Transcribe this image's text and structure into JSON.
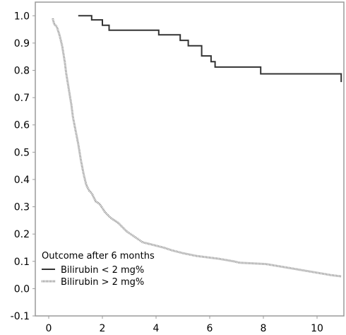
{
  "chart_data": {
    "type": "line",
    "xlim": [
      -0.5,
      11
    ],
    "ylim": [
      -0.1,
      1.05
    ],
    "x_ticks": [
      0,
      2,
      4,
      6,
      8,
      10
    ],
    "y_ticks": [
      -0.1,
      0.0,
      0.1,
      0.2,
      0.3,
      0.4,
      0.5,
      0.6,
      0.7,
      0.8,
      0.9,
      1.0
    ],
    "x_tick_labels": [
      "0",
      "2",
      "4",
      "6",
      "8",
      "10"
    ],
    "y_tick_labels": [
      "-0.1",
      "0.0",
      "0.1",
      "0.2",
      "0.3",
      "0.4",
      "0.5",
      "0.6",
      "0.7",
      "0.8",
      "0.9",
      "1.0"
    ],
    "grid": false,
    "legend": {
      "title": "Outcome after 6 months",
      "placement": "bottom-left",
      "entries": [
        "Bilirubin < 2 mg%",
        "Bilirubin > 2 mg%"
      ]
    },
    "series": [
      {
        "name": "Bilirubin < 2 mg%",
        "style": "solid",
        "color": "#333333",
        "points": [
          [
            1.1,
            1.0
          ],
          [
            1.6,
            1.0
          ],
          [
            1.6,
            0.985
          ],
          [
            2.0,
            0.985
          ],
          [
            2.0,
            0.965
          ],
          [
            2.25,
            0.965
          ],
          [
            2.25,
            0.947
          ],
          [
            4.1,
            0.947
          ],
          [
            4.1,
            0.93
          ],
          [
            4.9,
            0.93
          ],
          [
            4.9,
            0.91
          ],
          [
            5.2,
            0.91
          ],
          [
            5.2,
            0.89
          ],
          [
            5.7,
            0.89
          ],
          [
            5.7,
            0.853
          ],
          [
            6.05,
            0.853
          ],
          [
            6.05,
            0.832
          ],
          [
            6.2,
            0.832
          ],
          [
            6.2,
            0.812
          ],
          [
            7.9,
            0.812
          ],
          [
            7.9,
            0.787
          ],
          [
            10.9,
            0.787
          ],
          [
            10.9,
            0.757
          ]
        ]
      },
      {
        "name": "Bilirubin > 2 mg%",
        "style": "dotted",
        "color": "#888888",
        "points": [
          [
            0.15,
            0.99
          ],
          [
            0.2,
            0.97
          ],
          [
            0.3,
            0.96
          ],
          [
            0.4,
            0.93
          ],
          [
            0.5,
            0.89
          ],
          [
            0.6,
            0.83
          ],
          [
            0.65,
            0.79
          ],
          [
            0.7,
            0.76
          ],
          [
            0.75,
            0.73
          ],
          [
            0.8,
            0.7
          ],
          [
            0.85,
            0.67
          ],
          [
            0.9,
            0.63
          ],
          [
            1.0,
            0.58
          ],
          [
            1.1,
            0.53
          ],
          [
            1.15,
            0.5
          ],
          [
            1.2,
            0.47
          ],
          [
            1.3,
            0.42
          ],
          [
            1.4,
            0.38
          ],
          [
            1.5,
            0.36
          ],
          [
            1.6,
            0.35
          ],
          [
            1.75,
            0.32
          ],
          [
            1.9,
            0.31
          ],
          [
            2.1,
            0.28
          ],
          [
            2.3,
            0.26
          ],
          [
            2.6,
            0.24
          ],
          [
            2.9,
            0.21
          ],
          [
            3.2,
            0.19
          ],
          [
            3.5,
            0.17
          ],
          [
            3.9,
            0.16
          ],
          [
            4.3,
            0.15
          ],
          [
            4.6,
            0.14
          ],
          [
            5.0,
            0.13
          ],
          [
            5.5,
            0.12
          ],
          [
            5.9,
            0.115
          ],
          [
            6.3,
            0.11
          ],
          [
            6.9,
            0.1
          ],
          [
            7.1,
            0.095
          ],
          [
            8.1,
            0.09
          ],
          [
            9.0,
            0.075
          ],
          [
            9.6,
            0.065
          ],
          [
            10.5,
            0.05
          ],
          [
            10.9,
            0.045
          ]
        ]
      }
    ]
  }
}
